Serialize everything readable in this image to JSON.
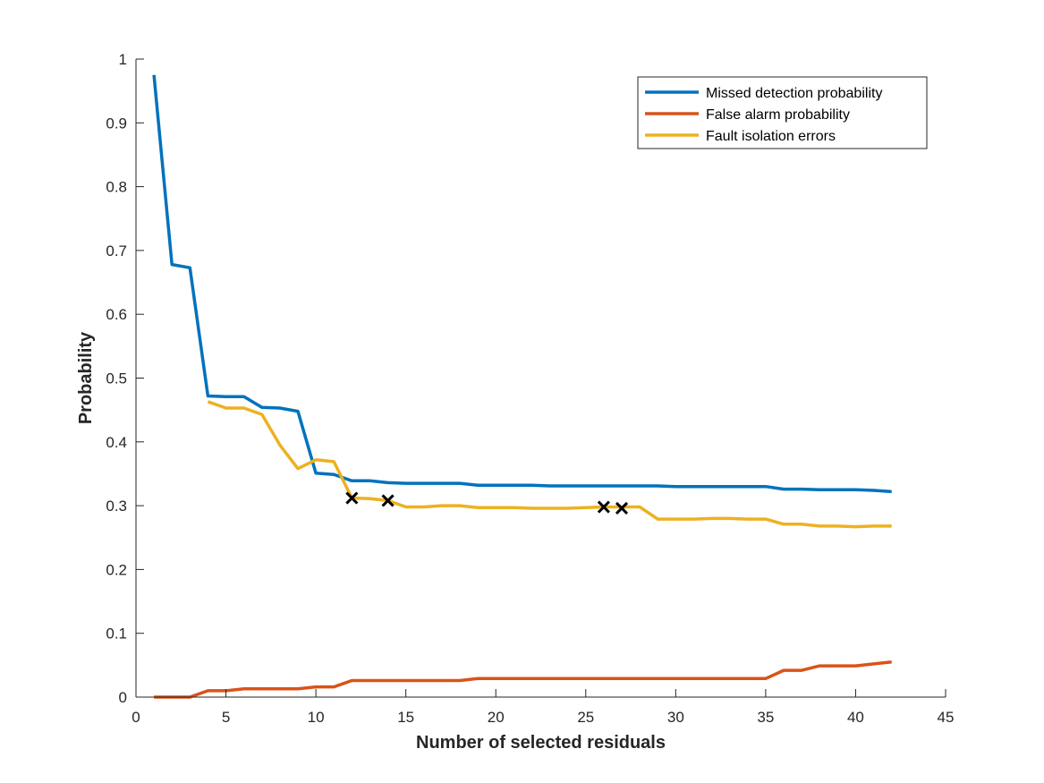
{
  "chart_data": {
    "type": "line",
    "title": "",
    "xlabel": "Number of selected residuals",
    "ylabel": "Probability",
    "xlim": [
      0,
      45
    ],
    "ylim": [
      0,
      1
    ],
    "xticks": [
      0,
      5,
      10,
      15,
      20,
      25,
      30,
      35,
      40,
      45
    ],
    "yticks": [
      0,
      0.1,
      0.2,
      0.3,
      0.4,
      0.5,
      0.6,
      0.7,
      0.8,
      0.9,
      1
    ],
    "grid": false,
    "legend_position": "top-right",
    "series": [
      {
        "name": "Missed detection probability",
        "color": "#0072BD",
        "x": [
          1,
          2,
          3,
          4,
          5,
          6,
          7,
          8,
          9,
          10,
          11,
          12,
          13,
          14,
          15,
          16,
          17,
          18,
          19,
          20,
          21,
          22,
          23,
          24,
          25,
          26,
          27,
          28,
          29,
          30,
          31,
          32,
          33,
          34,
          35,
          36,
          37,
          38,
          39,
          40,
          41,
          42
        ],
        "values": [
          0.975,
          0.678,
          0.673,
          0.472,
          0.471,
          0.471,
          0.454,
          0.453,
          0.448,
          0.351,
          0.349,
          0.339,
          0.339,
          0.336,
          0.335,
          0.335,
          0.335,
          0.335,
          0.332,
          0.332,
          0.332,
          0.332,
          0.331,
          0.331,
          0.331,
          0.331,
          0.331,
          0.331,
          0.331,
          0.33,
          0.33,
          0.33,
          0.33,
          0.33,
          0.33,
          0.326,
          0.326,
          0.325,
          0.325,
          0.325,
          0.324,
          0.322
        ]
      },
      {
        "name": "False alarm probability",
        "color": "#D95319",
        "x": [
          1,
          2,
          3,
          4,
          5,
          6,
          7,
          8,
          9,
          10,
          11,
          12,
          13,
          14,
          15,
          16,
          17,
          18,
          19,
          20,
          21,
          22,
          23,
          24,
          25,
          26,
          27,
          28,
          29,
          30,
          31,
          32,
          33,
          34,
          35,
          36,
          37,
          38,
          39,
          40,
          41,
          42
        ],
        "values": [
          0,
          0,
          0,
          0.01,
          0.01,
          0.013,
          0.013,
          0.013,
          0.013,
          0.016,
          0.016,
          0.026,
          0.026,
          0.026,
          0.026,
          0.026,
          0.026,
          0.026,
          0.029,
          0.029,
          0.029,
          0.029,
          0.029,
          0.029,
          0.029,
          0.029,
          0.029,
          0.029,
          0.029,
          0.029,
          0.029,
          0.029,
          0.029,
          0.029,
          0.029,
          0.042,
          0.042,
          0.049,
          0.049,
          0.049,
          0.052,
          0.055
        ]
      },
      {
        "name": "Fault isolation errors",
        "color": "#EDB120",
        "x": [
          4,
          5,
          6,
          7,
          8,
          9,
          10,
          11,
          12,
          13,
          14,
          15,
          16,
          17,
          18,
          19,
          20,
          21,
          22,
          23,
          24,
          25,
          26,
          27,
          28,
          29,
          30,
          31,
          32,
          33,
          34,
          35,
          36,
          37,
          38,
          39,
          40,
          41,
          42
        ],
        "values": [
          0.463,
          0.453,
          0.453,
          0.443,
          0.395,
          0.358,
          0.372,
          0.369,
          0.312,
          0.311,
          0.308,
          0.298,
          0.298,
          0.3,
          0.3,
          0.297,
          0.297,
          0.297,
          0.296,
          0.296,
          0.296,
          0.297,
          0.298,
          0.298,
          0.298,
          0.279,
          0.279,
          0.279,
          0.28,
          0.28,
          0.279,
          0.279,
          0.271,
          0.271,
          0.268,
          0.268,
          0.267,
          0.268,
          0.268
        ]
      }
    ],
    "markers": {
      "symbol": "x",
      "color": "#000000",
      "points": [
        {
          "x": 12,
          "y": 0.312
        },
        {
          "x": 14,
          "y": 0.308
        },
        {
          "x": 26,
          "y": 0.298
        },
        {
          "x": 27,
          "y": 0.296
        }
      ]
    }
  }
}
